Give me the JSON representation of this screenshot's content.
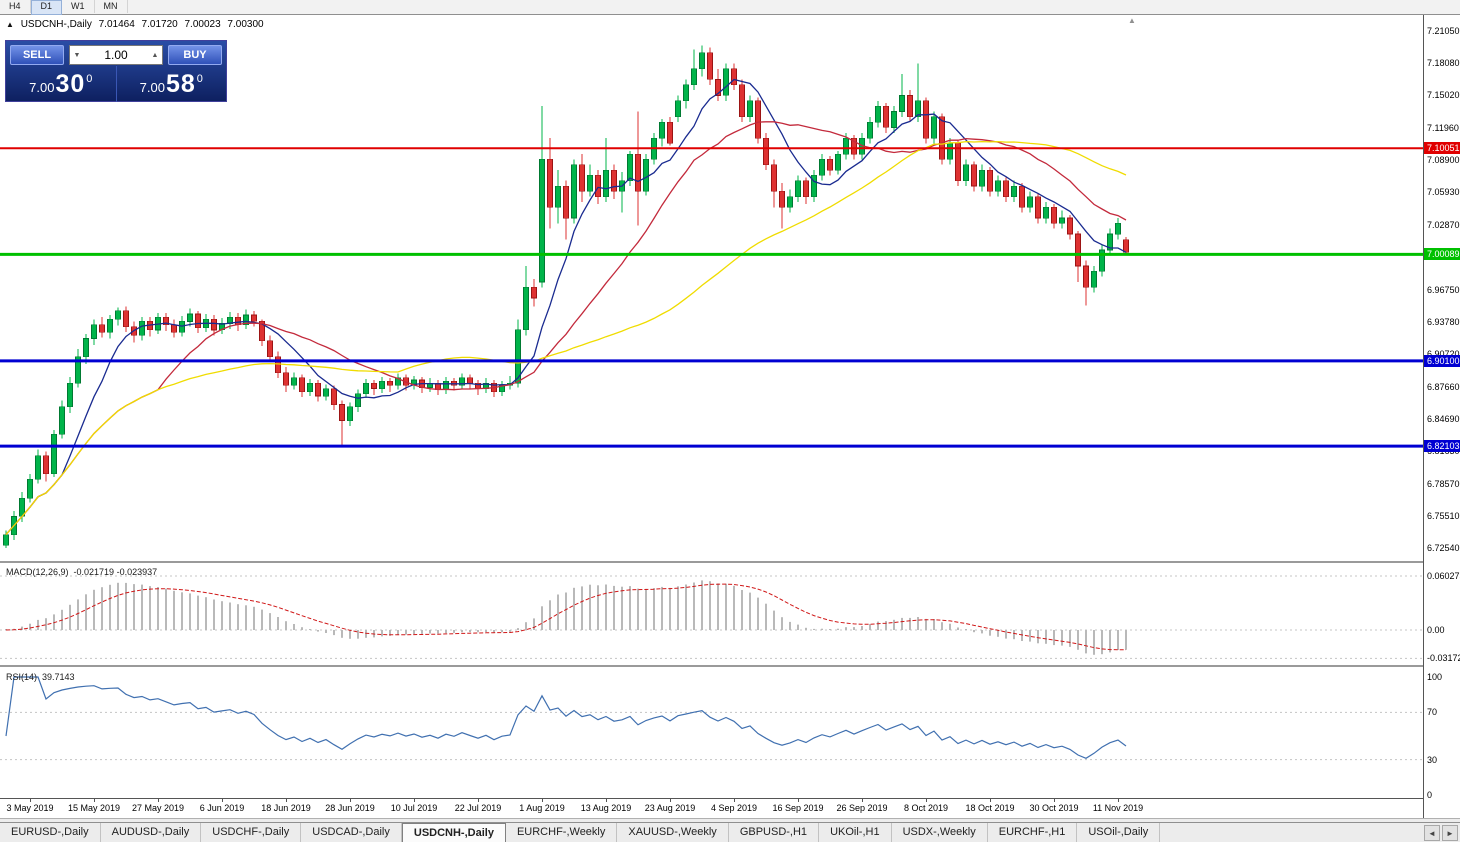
{
  "toolbar": {
    "periods": [
      {
        "label": "H4",
        "active": false
      },
      {
        "label": "D1",
        "active": true
      },
      {
        "label": "W1",
        "active": false
      },
      {
        "label": "MN",
        "active": false
      }
    ]
  },
  "icons": {
    "collapse": "▲",
    "volume_down": "▼",
    "volume_up": "▲",
    "tabs_left": "◄",
    "tabs_right": "►",
    "shift_marker": "▲"
  },
  "colors": {
    "candle_up": "#00b44a",
    "candle_up_edge": "#007a32",
    "candle_down": "#de3232",
    "candle_down_edge": "#9c1414",
    "macd_hist": "#b9b9b9",
    "macd_signal": "#d01818",
    "rsi_line": "#4070b0",
    "grid_dashed": "#c4c4c4"
  },
  "chart": {
    "symbol_header": "USDCNH-,Daily",
    "ohlc": {
      "open": "7.01464",
      "high": "7.01720",
      "low": "7.00023",
      "close": "7.00300"
    },
    "trade_panel": {
      "sell_label": "SELL",
      "buy_label": "BUY",
      "volume": "1.00",
      "sell_price": {
        "small": "7.00",
        "big": "30",
        "sup": "0"
      },
      "buy_price": {
        "small": "7.00",
        "big": "58",
        "sup": "0"
      }
    },
    "hlines": [
      {
        "price": 7.10051,
        "label": "7.10051",
        "color": "#e00000",
        "width": 2
      },
      {
        "price": 7.00089,
        "label": "7.00089",
        "color": "#00c000",
        "width": 3
      },
      {
        "price": 6.901,
        "label": "6.90100",
        "color": "#0000d2",
        "width": 3
      },
      {
        "price": 6.82103,
        "label": "6.82103",
        "color": "#0000d2",
        "width": 3
      }
    ],
    "y_axis_labels": [
      "7.21050",
      "7.18080",
      "7.15020",
      "7.11960",
      "7.08900",
      "7.05930",
      "7.02870",
      "6.99810",
      "6.96750",
      "6.93780",
      "6.90720",
      "6.87660",
      "6.84690",
      "6.81630",
      "6.78570",
      "6.75510",
      "6.72540"
    ]
  },
  "chart_data": {
    "type": "candlestick",
    "symbol": "USDCNH",
    "timeframe": "Daily",
    "price_range": [
      6.7132,
      7.2255
    ],
    "x_labels": [
      {
        "i": 3,
        "t": "3 May 2019"
      },
      {
        "i": 11,
        "t": "15 May 2019"
      },
      {
        "i": 19,
        "t": "27 May 2019"
      },
      {
        "i": 27,
        "t": "6 Jun 2019"
      },
      {
        "i": 35,
        "t": "18 Jun 2019"
      },
      {
        "i": 43,
        "t": "28 Jun 2019"
      },
      {
        "i": 51,
        "t": "10 Jul 2019"
      },
      {
        "i": 59,
        "t": "22 Jul 2019"
      },
      {
        "i": 67,
        "t": "1 Aug 2019"
      },
      {
        "i": 75,
        "t": "13 Aug 2019"
      },
      {
        "i": 83,
        "t": "23 Aug 2019"
      },
      {
        "i": 91,
        "t": "4 Sep 2019"
      },
      {
        "i": 99,
        "t": "16 Sep 2019"
      },
      {
        "i": 107,
        "t": "26 Sep 2019"
      },
      {
        "i": 115,
        "t": "8 Oct 2019"
      },
      {
        "i": 123,
        "t": "18 Oct 2019"
      },
      {
        "i": 131,
        "t": "30 Oct 2019"
      },
      {
        "i": 139,
        "t": "11 Nov 2019"
      }
    ],
    "moving_averages": [
      {
        "period": 8,
        "color": "#1a2b90"
      },
      {
        "period": 20,
        "color": "#c32a3c"
      },
      {
        "period": 50,
        "color": "#f0dc00"
      }
    ],
    "candles": [
      [
        6.728,
        6.742,
        6.7255,
        6.738
      ],
      [
        6.738,
        6.76,
        6.733,
        6.755
      ],
      [
        6.755,
        6.778,
        6.75,
        6.772
      ],
      [
        6.772,
        6.795,
        6.768,
        6.79
      ],
      [
        6.79,
        6.818,
        6.786,
        6.812
      ],
      [
        6.812,
        6.816,
        6.788,
        6.795
      ],
      [
        6.795,
        6.836,
        6.792,
        6.832
      ],
      [
        6.832,
        6.864,
        6.828,
        6.858
      ],
      [
        6.858,
        6.886,
        6.852,
        6.88
      ],
      [
        6.88,
        6.912,
        6.876,
        6.905
      ],
      [
        6.905,
        6.926,
        6.898,
        6.922
      ],
      [
        6.922,
        6.94,
        6.916,
        6.935
      ],
      [
        6.935,
        6.942,
        6.923,
        6.928
      ],
      [
        6.928,
        6.944,
        6.922,
        6.94
      ],
      [
        6.94,
        6.951,
        6.934,
        6.948
      ],
      [
        6.948,
        6.952,
        6.928,
        6.933
      ],
      [
        6.933,
        6.938,
        6.918,
        6.925
      ],
      [
        6.925,
        6.942,
        6.92,
        6.938
      ],
      [
        6.938,
        6.942,
        6.924,
        6.93
      ],
      [
        6.93,
        6.946,
        6.926,
        6.942
      ],
      [
        6.942,
        6.946,
        6.929,
        6.935
      ],
      [
        6.935,
        6.94,
        6.923,
        6.928
      ],
      [
        6.928,
        6.943,
        6.924,
        6.938
      ],
      [
        6.938,
        6.95,
        6.933,
        6.945
      ],
      [
        6.945,
        6.948,
        6.927,
        6.932
      ],
      [
        6.932,
        6.945,
        6.928,
        6.94
      ],
      [
        6.94,
        6.944,
        6.925,
        6.93
      ],
      [
        6.93,
        6.941,
        6.926,
        6.936
      ],
      [
        6.936,
        6.947,
        6.931,
        6.942
      ],
      [
        6.942,
        6.946,
        6.929,
        6.935
      ],
      [
        6.935,
        6.949,
        6.931,
        6.944
      ],
      [
        6.944,
        6.948,
        6.933,
        6.938
      ],
      [
        6.938,
        6.94,
        6.915,
        6.92
      ],
      [
        6.92,
        6.925,
        6.9,
        6.905
      ],
      [
        6.905,
        6.91,
        6.885,
        6.89
      ],
      [
        6.89,
        6.895,
        6.872,
        6.878
      ],
      [
        6.878,
        6.89,
        6.874,
        6.885
      ],
      [
        6.885,
        6.888,
        6.867,
        6.872
      ],
      [
        6.872,
        6.884,
        6.868,
        6.88
      ],
      [
        6.88,
        6.883,
        6.863,
        6.868
      ],
      [
        6.868,
        6.879,
        6.864,
        6.875
      ],
      [
        6.875,
        6.878,
        6.855,
        6.86
      ],
      [
        6.86,
        6.864,
        6.82,
        6.845
      ],
      [
        6.845,
        6.862,
        6.84,
        6.858
      ],
      [
        6.858,
        6.874,
        6.853,
        6.87
      ],
      [
        6.87,
        6.884,
        6.866,
        6.88
      ],
      [
        6.88,
        6.883,
        6.869,
        6.875
      ],
      [
        6.875,
        6.886,
        6.871,
        6.882
      ],
      [
        6.882,
        6.885,
        6.872,
        6.878
      ],
      [
        6.878,
        6.889,
        6.874,
        6.885
      ],
      [
        6.885,
        6.888,
        6.873,
        6.878
      ],
      [
        6.878,
        6.887,
        6.874,
        6.883
      ],
      [
        6.883,
        6.886,
        6.871,
        6.876
      ],
      [
        6.876,
        6.885,
        6.872,
        6.88
      ],
      [
        6.88,
        6.883,
        6.869,
        6.874
      ],
      [
        6.874,
        6.886,
        6.87,
        6.882
      ],
      [
        6.882,
        6.885,
        6.873,
        6.878
      ],
      [
        6.878,
        6.889,
        6.874,
        6.885
      ],
      [
        6.885,
        6.888,
        6.875,
        6.88
      ],
      [
        6.88,
        6.883,
        6.869,
        6.875
      ],
      [
        6.875,
        6.885,
        6.871,
        6.88
      ],
      [
        6.88,
        6.883,
        6.867,
        6.872
      ],
      [
        6.872,
        6.882,
        6.868,
        6.878
      ],
      [
        6.878,
        6.887,
        6.874,
        6.88
      ],
      [
        6.88,
        6.94,
        6.876,
        6.93
      ],
      [
        6.93,
        6.99,
        6.925,
        6.97
      ],
      [
        6.97,
        6.978,
        6.952,
        6.96
      ],
      [
        6.975,
        7.14,
        6.97,
        7.09
      ],
      [
        7.09,
        7.11,
        7.025,
        7.045
      ],
      [
        7.045,
        7.08,
        7.03,
        7.065
      ],
      [
        7.065,
        7.07,
        7.015,
        7.035
      ],
      [
        7.035,
        7.09,
        7.03,
        7.085
      ],
      [
        7.085,
        7.095,
        7.05,
        7.06
      ],
      [
        7.06,
        7.085,
        7.055,
        7.075
      ],
      [
        7.075,
        7.08,
        7.048,
        7.055
      ],
      [
        7.055,
        7.11,
        7.05,
        7.08
      ],
      [
        7.08,
        7.085,
        7.053,
        7.06
      ],
      [
        7.06,
        7.078,
        7.04,
        7.07
      ],
      [
        7.07,
        7.098,
        7.065,
        7.095
      ],
      [
        7.095,
        7.135,
        7.028,
        7.06
      ],
      [
        7.06,
        7.095,
        7.056,
        7.09
      ],
      [
        7.09,
        7.115,
        7.085,
        7.11
      ],
      [
        7.11,
        7.128,
        7.102,
        7.125
      ],
      [
        7.125,
        7.13,
        7.103,
        7.105
      ],
      [
        7.13,
        7.15,
        7.125,
        7.145
      ],
      [
        7.145,
        7.165,
        7.138,
        7.16
      ],
      [
        7.16,
        7.193,
        7.155,
        7.175
      ],
      [
        7.175,
        7.197,
        7.168,
        7.19
      ],
      [
        7.19,
        7.195,
        7.16,
        7.165
      ],
      [
        7.165,
        7.175,
        7.145,
        7.15
      ],
      [
        7.15,
        7.18,
        7.145,
        7.175
      ],
      [
        7.175,
        7.18,
        7.155,
        7.16
      ],
      [
        7.16,
        7.165,
        7.125,
        7.13
      ],
      [
        7.13,
        7.15,
        7.125,
        7.145
      ],
      [
        7.145,
        7.148,
        7.105,
        7.11
      ],
      [
        7.11,
        7.115,
        7.08,
        7.085
      ],
      [
        7.085,
        7.09,
        7.045,
        7.06
      ],
      [
        7.06,
        7.068,
        7.025,
        7.045
      ],
      [
        7.045,
        7.062,
        7.04,
        7.055
      ],
      [
        7.055,
        7.075,
        7.05,
        7.07
      ],
      [
        7.07,
        7.073,
        7.048,
        7.055
      ],
      [
        7.055,
        7.08,
        7.05,
        7.075
      ],
      [
        7.075,
        7.095,
        7.07,
        7.09
      ],
      [
        7.09,
        7.093,
        7.075,
        7.08
      ],
      [
        7.08,
        7.098,
        7.076,
        7.095
      ],
      [
        7.095,
        7.115,
        7.09,
        7.11
      ],
      [
        7.11,
        7.113,
        7.09,
        7.095
      ],
      [
        7.095,
        7.115,
        7.09,
        7.11
      ],
      [
        7.11,
        7.13,
        7.105,
        7.125
      ],
      [
        7.125,
        7.145,
        7.12,
        7.14
      ],
      [
        7.14,
        7.143,
        7.115,
        7.12
      ],
      [
        7.12,
        7.14,
        7.115,
        7.135
      ],
      [
        7.135,
        7.17,
        7.13,
        7.15
      ],
      [
        7.15,
        7.155,
        7.125,
        7.13
      ],
      [
        7.13,
        7.18,
        7.125,
        7.145
      ],
      [
        7.145,
        7.148,
        7.105,
        7.11
      ],
      [
        7.11,
        7.135,
        7.105,
        7.13
      ],
      [
        7.13,
        7.133,
        7.085,
        7.09
      ],
      [
        7.09,
        7.11,
        7.085,
        7.105
      ],
      [
        7.105,
        7.108,
        7.065,
        7.07
      ],
      [
        7.07,
        7.09,
        7.065,
        7.085
      ],
      [
        7.085,
        7.088,
        7.06,
        7.065
      ],
      [
        7.065,
        7.085,
        7.06,
        7.08
      ],
      [
        7.08,
        7.083,
        7.055,
        7.06
      ],
      [
        7.06,
        7.075,
        7.055,
        7.07
      ],
      [
        7.07,
        7.073,
        7.05,
        7.055
      ],
      [
        7.055,
        7.07,
        7.05,
        7.065
      ],
      [
        7.065,
        7.068,
        7.04,
        7.045
      ],
      [
        7.045,
        7.06,
        7.04,
        7.055
      ],
      [
        7.055,
        7.058,
        7.03,
        7.035
      ],
      [
        7.035,
        7.05,
        7.03,
        7.045
      ],
      [
        7.045,
        7.048,
        7.025,
        7.03
      ],
      [
        7.03,
        7.042,
        7.025,
        7.035
      ],
      [
        7.035,
        7.038,
        7.015,
        7.02
      ],
      [
        7.02,
        7.023,
        6.975,
        6.99
      ],
      [
        6.99,
        6.995,
        6.953,
        6.97
      ],
      [
        6.97,
        6.99,
        6.965,
        6.985
      ],
      [
        6.985,
        7.01,
        6.98,
        7.005
      ],
      [
        7.005,
        7.025,
        7.0,
        7.02
      ],
      [
        7.02,
        7.035,
        7.015,
        7.03
      ],
      [
        7.0146,
        7.0172,
        7.0002,
        7.003
      ]
    ]
  },
  "macd": {
    "label": "MACD(12,26,9)",
    "values_text": "-0.021719 -0.023937",
    "params": {
      "fast": 12,
      "slow": 26,
      "signal": 9
    },
    "axis": [
      {
        "v": 0.060273,
        "label": "0.060273"
      },
      {
        "v": 0,
        "label": "0.00"
      },
      {
        "v": -0.03172,
        "label": "-0.03172"
      }
    ]
  },
  "rsi": {
    "label": "RSI(14)",
    "value_text": "39.7143",
    "period": 14,
    "levels": [
      70,
      30
    ],
    "axis": [
      {
        "v": 100,
        "label": "100"
      },
      {
        "v": 70,
        "label": "70"
      },
      {
        "v": 30,
        "label": "30"
      },
      {
        "v": 0,
        "label": "0"
      }
    ]
  },
  "tabs": [
    {
      "label": "EURUSD-,Daily",
      "active": false
    },
    {
      "label": "AUDUSD-,Daily",
      "active": false
    },
    {
      "label": "USDCHF-,Daily",
      "active": false
    },
    {
      "label": "USDCAD-,Daily",
      "active": false
    },
    {
      "label": "USDCNH-,Daily",
      "active": true
    },
    {
      "label": "EURCHF-,Weekly",
      "active": false
    },
    {
      "label": "XAUUSD-,Weekly",
      "active": false
    },
    {
      "label": "GBPUSD-,H1",
      "active": false
    },
    {
      "label": "UKOil-,H1",
      "active": false
    },
    {
      "label": "USDX-,Weekly",
      "active": false
    },
    {
      "label": "EURCHF-,H1",
      "active": false
    },
    {
      "label": "USOil-,Daily",
      "active": false
    }
  ]
}
